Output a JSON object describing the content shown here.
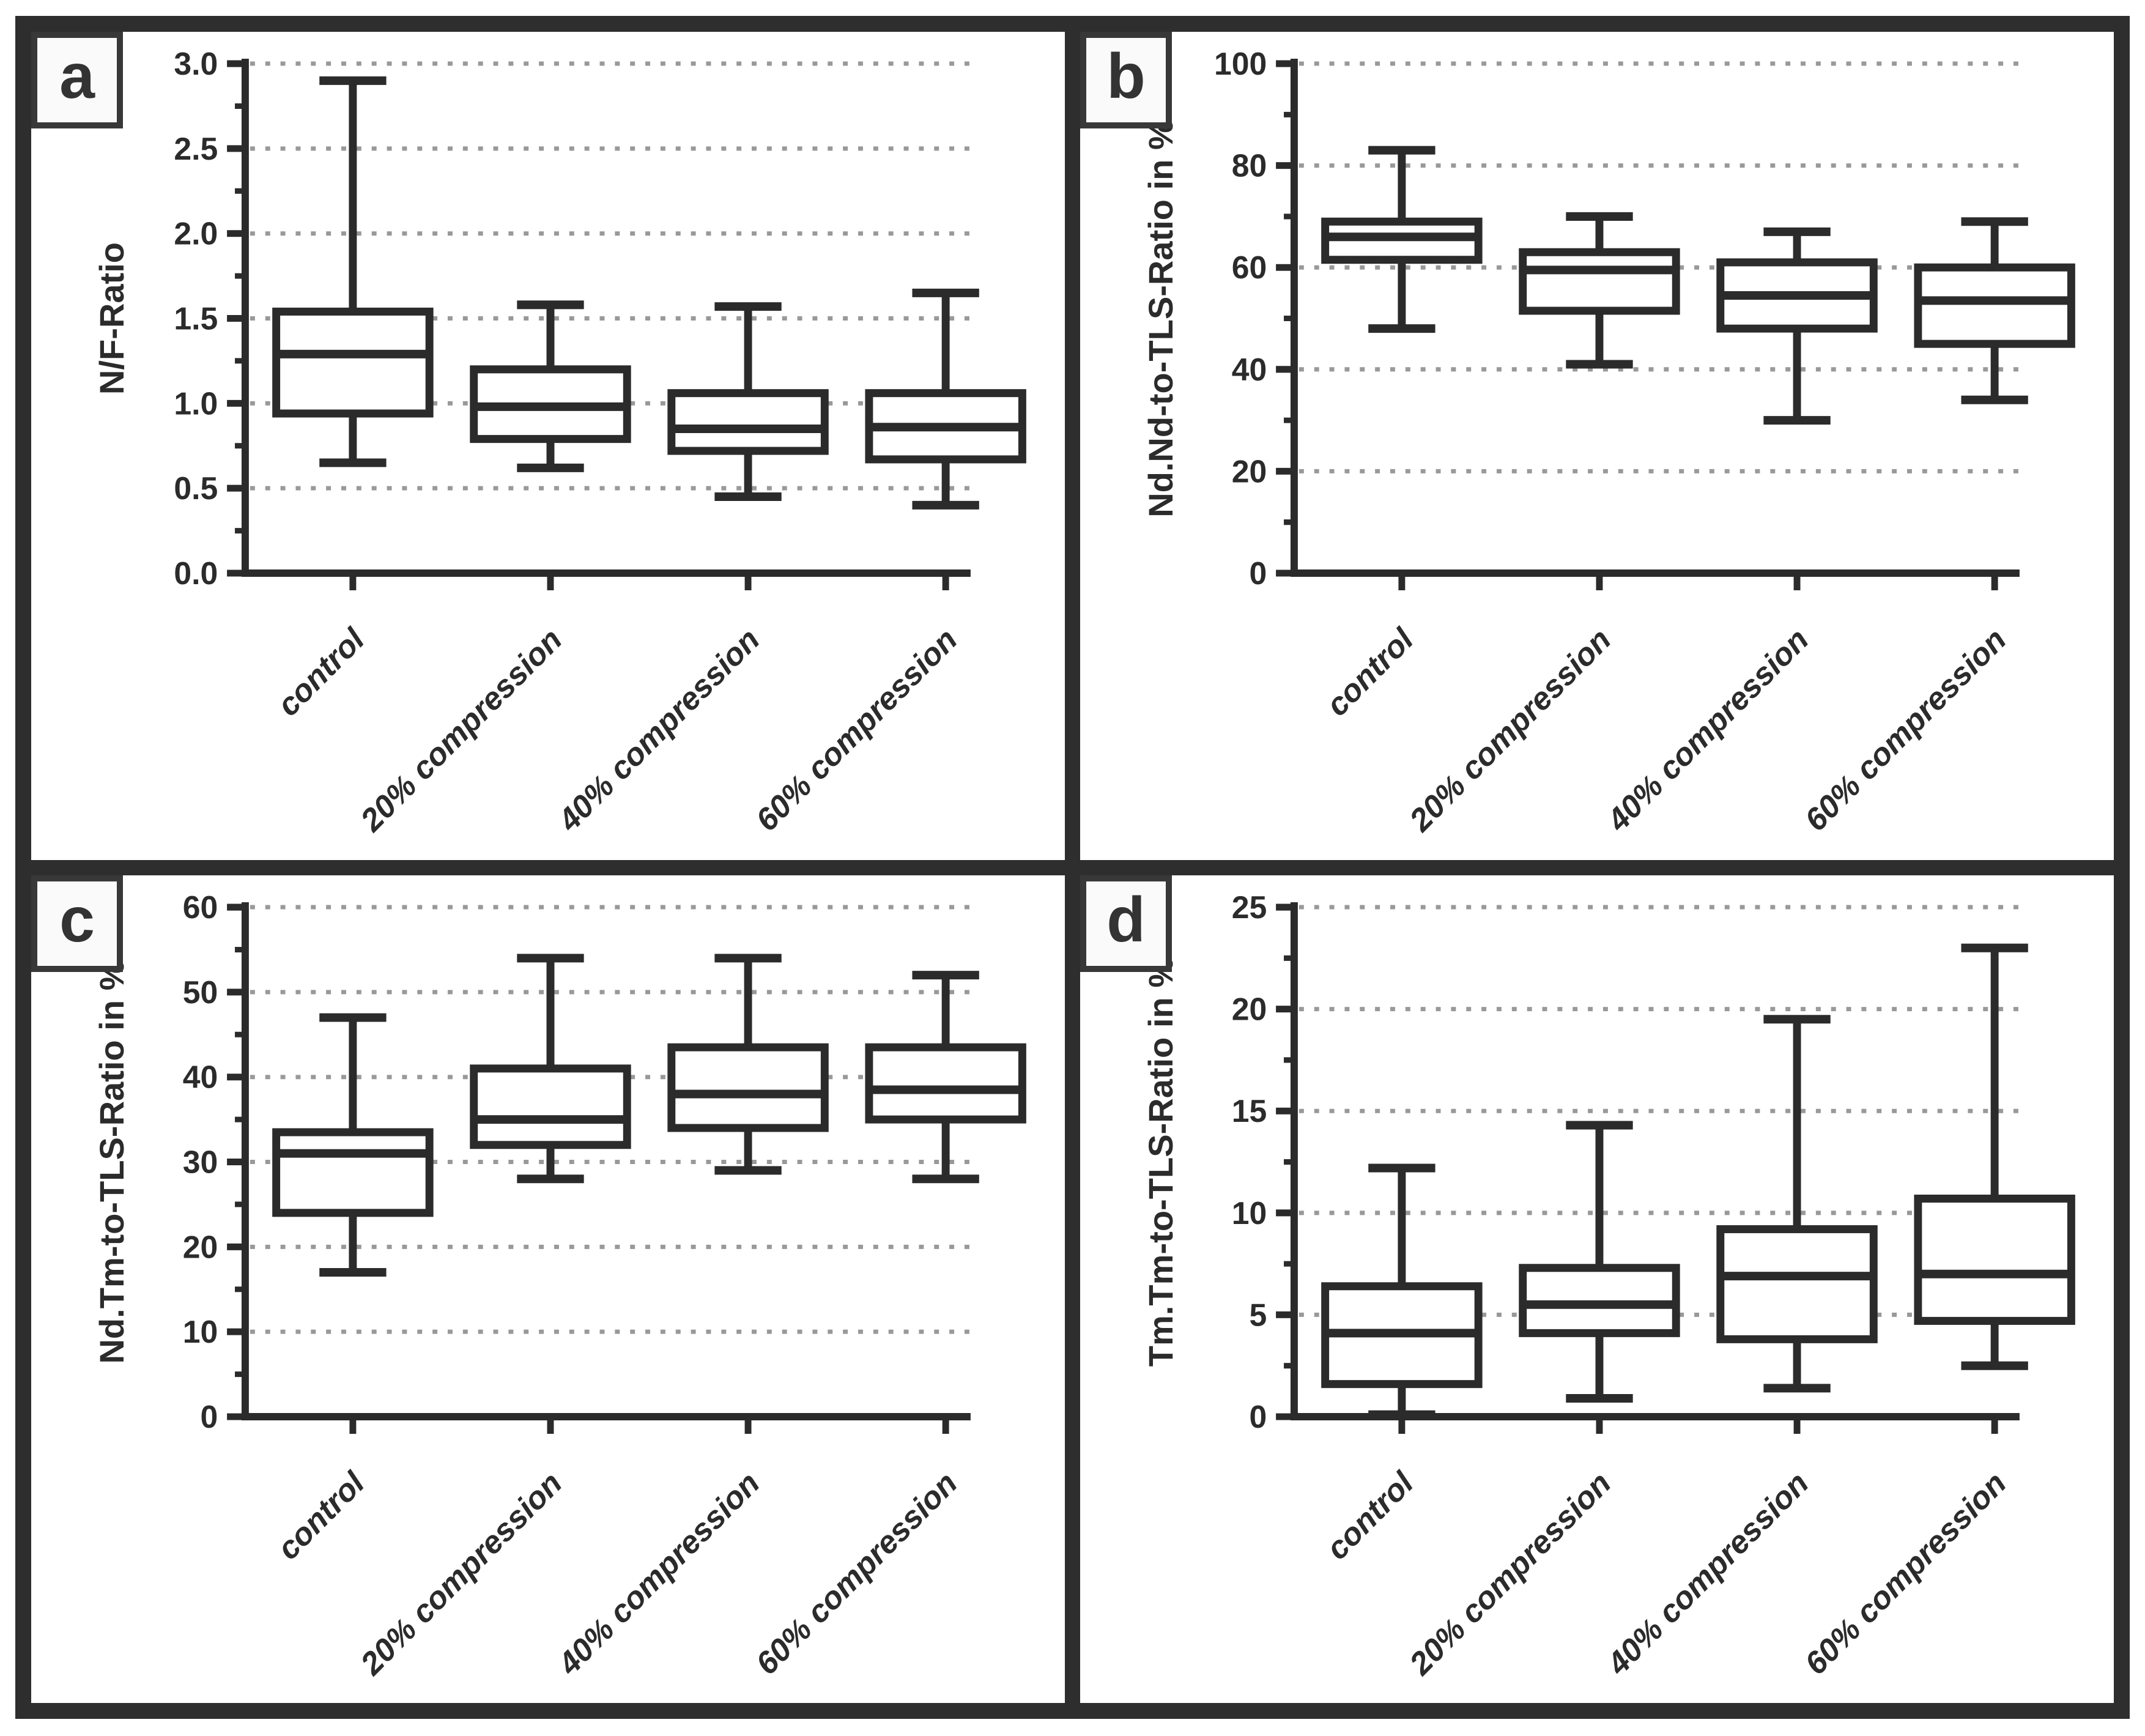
{
  "figure": {
    "panel_letters": [
      "a",
      "b",
      "c",
      "d"
    ],
    "frame_color": "#2e2e2e",
    "box_stroke_color": "#2b2b2b",
    "gridline_color": "#999999",
    "panel_bg": "#ffffff",
    "label_box_bg": "#fafafa"
  },
  "chart_data": [
    {
      "type": "box",
      "panel_letter": "a",
      "title": "",
      "xlabel": "",
      "ylabel": "N/F-Ratio",
      "ylim": [
        0,
        3
      ],
      "ytick_values": [
        0,
        0.5,
        1,
        1.5,
        2,
        2.5,
        3
      ],
      "ytick_labels": [
        "0.0",
        "0.5",
        "1.0",
        "1.5",
        "2.0",
        "2.5",
        "3.0"
      ],
      "minor_tick_values": [
        0.25,
        0.75,
        1.25,
        1.75,
        2.25,
        2.75
      ],
      "grid": "horizontal-dashed-at-major-ticks",
      "legend": "none",
      "categories": [
        "control",
        "20% compression",
        "40% compression",
        "60% compression"
      ],
      "series": [
        {
          "name": "control",
          "whisker_low": 0.65,
          "q1": 0.94,
          "median": 1.29,
          "q3": 1.54,
          "whisker_high": 2.9
        },
        {
          "name": "20% compression",
          "whisker_low": 0.62,
          "q1": 0.79,
          "median": 0.98,
          "q3": 1.2,
          "whisker_high": 1.58
        },
        {
          "name": "40% compression",
          "whisker_low": 0.45,
          "q1": 0.72,
          "median": 0.85,
          "q3": 1.06,
          "whisker_high": 1.57
        },
        {
          "name": "60% compression",
          "whisker_low": 0.4,
          "q1": 0.67,
          "median": 0.86,
          "q3": 1.06,
          "whisker_high": 1.65
        }
      ]
    },
    {
      "type": "box",
      "panel_letter": "b",
      "title": "",
      "xlabel": "",
      "ylabel": "Nd.Nd-to-TLS-Ratio in %",
      "ylim": [
        0,
        100
      ],
      "ytick_values": [
        0,
        20,
        40,
        60,
        80,
        100
      ],
      "ytick_labels": [
        "0",
        "20",
        "40",
        "60",
        "80",
        "100"
      ],
      "minor_tick_values": [
        10,
        30,
        50,
        70,
        90
      ],
      "grid": "horizontal-dashed-at-major-ticks",
      "legend": "none",
      "categories": [
        "control",
        "20% compression",
        "40% compression",
        "60% compression"
      ],
      "series": [
        {
          "name": "control",
          "whisker_low": 48,
          "q1": 61.5,
          "median": 66,
          "q3": 69,
          "whisker_high": 83
        },
        {
          "name": "20% compression",
          "whisker_low": 41,
          "q1": 51.5,
          "median": 59.5,
          "q3": 63,
          "whisker_high": 70
        },
        {
          "name": "40% compression",
          "whisker_low": 30,
          "q1": 48,
          "median": 54.5,
          "q3": 61,
          "whisker_high": 67
        },
        {
          "name": "60% compression",
          "whisker_low": 34,
          "q1": 45,
          "median": 53.5,
          "q3": 60,
          "whisker_high": 69
        }
      ]
    },
    {
      "type": "box",
      "panel_letter": "c",
      "title": "",
      "xlabel": "",
      "ylabel": "Nd.Tm-to-TLS-Ratio in %",
      "ylim": [
        0,
        60
      ],
      "ytick_values": [
        0,
        10,
        20,
        30,
        40,
        50,
        60
      ],
      "ytick_labels": [
        "0",
        "10",
        "20",
        "30",
        "40",
        "50",
        "60"
      ],
      "minor_tick_values": [
        5,
        15,
        25,
        35,
        45,
        55
      ],
      "grid": "horizontal-dashed-at-major-ticks",
      "legend": "none",
      "categories": [
        "control",
        "20% compression",
        "40% compression",
        "60% compression"
      ],
      "series": [
        {
          "name": "control",
          "whisker_low": 17,
          "q1": 24,
          "median": 31,
          "q3": 33.5,
          "whisker_high": 47
        },
        {
          "name": "20% compression",
          "whisker_low": 28,
          "q1": 32,
          "median": 35,
          "q3": 41,
          "whisker_high": 54
        },
        {
          "name": "40% compression",
          "whisker_low": 29,
          "q1": 34,
          "median": 38,
          "q3": 43.5,
          "whisker_high": 54
        },
        {
          "name": "60% compression",
          "whisker_low": 28,
          "q1": 35,
          "median": 38.5,
          "q3": 43.5,
          "whisker_high": 52
        }
      ]
    },
    {
      "type": "box",
      "panel_letter": "d",
      "title": "",
      "xlabel": "",
      "ylabel": "Tm.Tm-to-TLS-Ratio in %",
      "ylim": [
        0,
        25
      ],
      "ytick_values": [
        0,
        5,
        10,
        15,
        20,
        25
      ],
      "ytick_labels": [
        "0",
        "5",
        "10",
        "15",
        "20",
        "25"
      ],
      "minor_tick_values": [
        2.5,
        7.5,
        12.5,
        17.5,
        22.5
      ],
      "grid": "horizontal-dashed-at-major-ticks",
      "legend": "none",
      "categories": [
        "control",
        "20% compression",
        "40% compression",
        "60% compression"
      ],
      "series": [
        {
          "name": "control",
          "whisker_low": 0.1,
          "q1": 1.6,
          "median": 4.1,
          "q3": 6.4,
          "whisker_high": 12.2
        },
        {
          "name": "20% compression",
          "whisker_low": 0.9,
          "q1": 4.1,
          "median": 5.5,
          "q3": 7.3,
          "whisker_high": 14.3
        },
        {
          "name": "40% compression",
          "whisker_low": 1.4,
          "q1": 3.8,
          "median": 6.9,
          "q3": 9.2,
          "whisker_high": 19.5
        },
        {
          "name": "60% compression",
          "whisker_low": 2.5,
          "q1": 4.7,
          "median": 7.0,
          "q3": 10.7,
          "whisker_high": 23.0
        }
      ]
    }
  ]
}
